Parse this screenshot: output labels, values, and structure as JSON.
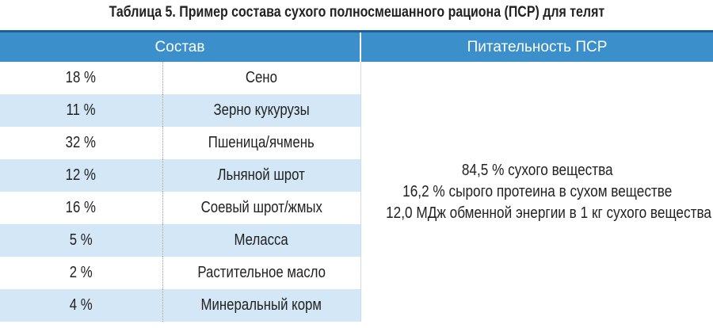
{
  "header": {
    "title": "Таблица 5. Пример состава сухого полносмешанного рациона (ПСР) для телят"
  },
  "table": {
    "columns": [
      "Состав",
      "Питательность ПСР"
    ],
    "rows": [
      [
        "18 %",
        "Сено"
      ],
      [
        "11 %",
        "Зерно кукурузы"
      ],
      [
        "32 %",
        "Пшеница/ячмень"
      ],
      [
        "12 %",
        "Льняной шрот"
      ],
      [
        "16 %",
        "Соевый шрот/жмых"
      ],
      [
        "5 %",
        "Меласса"
      ],
      [
        "2 %",
        "Растительное масло"
      ],
      [
        "4 %",
        "Минеральный корм"
      ]
    ],
    "nutrition": [
      "84,5 % сухого вещества",
      "16,2 % сырого протеина в сухом веществе",
      "12,0 МДж обменной энергии в 1 кг сухого вещества"
    ]
  }
}
